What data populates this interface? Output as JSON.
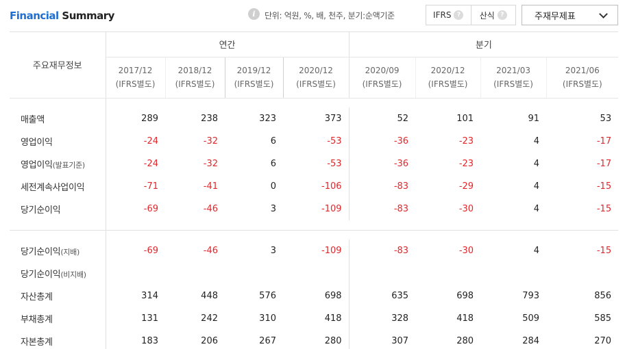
{
  "header": {
    "title_accent": "Financial",
    "title_rest": " Summary",
    "unit_text": "단위: 억원, %, 배, 천주, 분기:순액기준",
    "toggle_ifrs": "IFRS",
    "toggle_sansik": "산식",
    "help_glyph": "?",
    "info_glyph": "i",
    "select_value": "주재무제표"
  },
  "table": {
    "corner_label": "주요재무정보",
    "groups": [
      "연간",
      "분기"
    ],
    "periods": [
      {
        "date": "2017/12",
        "basis": "(IFRS별도)"
      },
      {
        "date": "2018/12",
        "basis": "(IFRS별도)"
      },
      {
        "date": "2019/12",
        "basis": "(IFRS별도)"
      },
      {
        "date": "2020/12",
        "basis": "(IFRS별도)"
      },
      {
        "date": "2020/09",
        "basis": "(IFRS별도)"
      },
      {
        "date": "2020/12",
        "basis": "(IFRS별도)"
      },
      {
        "date": "2021/03",
        "basis": "(IFRS별도)"
      },
      {
        "date": "2021/06",
        "basis": "(IFRS별도)"
      }
    ],
    "section1": [
      {
        "label": "매출액",
        "sub": "",
        "values": [
          "289",
          "238",
          "323",
          "373",
          "52",
          "101",
          "91",
          "53"
        ]
      },
      {
        "label": "영업이익",
        "sub": "",
        "values": [
          "-24",
          "-32",
          "6",
          "-53",
          "-36",
          "-23",
          "4",
          "-17"
        ]
      },
      {
        "label": "영업이익",
        "sub": "(발표기준)",
        "values": [
          "-24",
          "-32",
          "6",
          "-53",
          "-36",
          "-23",
          "4",
          "-17"
        ]
      },
      {
        "label": "세전계속사업이익",
        "sub": "",
        "values": [
          "-71",
          "-41",
          "0",
          "-106",
          "-83",
          "-29",
          "4",
          "-15"
        ]
      },
      {
        "label": "당기순이익",
        "sub": "",
        "values": [
          "-69",
          "-46",
          "3",
          "-109",
          "-83",
          "-30",
          "4",
          "-15"
        ]
      }
    ],
    "section2": [
      {
        "label": "당기순이익",
        "sub": "(지배)",
        "values": [
          "-69",
          "-46",
          "3",
          "-109",
          "-83",
          "-30",
          "4",
          "-15"
        ]
      },
      {
        "label": "당기순이익",
        "sub": "(비지배)",
        "values": [
          "",
          "",
          "",
          "",
          "",
          "",
          "",
          ""
        ]
      },
      {
        "label": "자산총계",
        "sub": "",
        "values": [
          "314",
          "448",
          "576",
          "698",
          "635",
          "698",
          "793",
          "856"
        ]
      },
      {
        "label": "부채총계",
        "sub": "",
        "values": [
          "131",
          "242",
          "310",
          "418",
          "328",
          "418",
          "509",
          "585"
        ]
      },
      {
        "label": "자본총계",
        "sub": "",
        "values": [
          "183",
          "206",
          "267",
          "280",
          "307",
          "280",
          "284",
          "270"
        ]
      }
    ]
  },
  "colors": {
    "accent": "#1f6fd1",
    "negative": "#e0262b"
  }
}
